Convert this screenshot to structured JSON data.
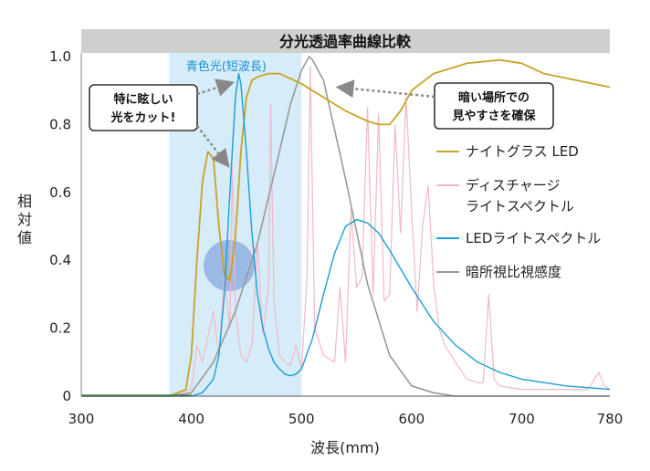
{
  "chart_data": {
    "type": "line",
    "title": "分光透過率曲線比較",
    "xlabel": "波長(mm)",
    "ylabel": "相対値",
    "xlim": [
      300,
      780
    ],
    "ylim": [
      0,
      1.0
    ],
    "x_ticks": [
      "300",
      "400",
      "500",
      "600",
      "700",
      "780"
    ],
    "x_tick_values": [
      300,
      400,
      500,
      600,
      700,
      780
    ],
    "y_ticks": [
      "0",
      "0.2",
      "0.4",
      "0.6",
      "0.8",
      "1.0"
    ],
    "y_tick_values": [
      0,
      0.2,
      0.4,
      0.6,
      0.8,
      1.0
    ],
    "grid": false,
    "legend_position": "right",
    "series": [
      {
        "name": "ナイトグラス LED",
        "color": "#c9a227",
        "x": [
          300,
          380,
          395,
          400,
          405,
          410,
          415,
          420,
          425,
          430,
          435,
          440,
          445,
          450,
          455,
          460,
          470,
          480,
          500,
          520,
          540,
          560,
          570,
          580,
          590,
          600,
          620,
          650,
          680,
          700,
          720,
          750,
          780
        ],
        "y": [
          0,
          0,
          0.02,
          0.12,
          0.4,
          0.63,
          0.72,
          0.7,
          0.5,
          0.36,
          0.34,
          0.47,
          0.72,
          0.88,
          0.93,
          0.94,
          0.95,
          0.95,
          0.92,
          0.88,
          0.84,
          0.81,
          0.8,
          0.8,
          0.84,
          0.9,
          0.95,
          0.98,
          0.99,
          0.98,
          0.95,
          0.93,
          0.91
        ]
      },
      {
        "name": "ディスチャージ ライトスペクトル",
        "color": "#f2b8c6",
        "x": [
          300,
          380,
          400,
          405,
          410,
          420,
          425,
          430,
          435,
          437,
          440,
          445,
          450,
          455,
          460,
          465,
          470,
          472,
          475,
          480,
          485,
          490,
          495,
          500,
          505,
          508,
          512,
          520,
          530,
          535,
          540,
          545,
          550,
          555,
          560,
          565,
          570,
          575,
          580,
          585,
          590,
          595,
          600,
          605,
          610,
          615,
          620,
          625,
          630,
          640,
          650,
          660,
          665,
          670,
          675,
          680,
          700,
          720,
          740,
          760,
          770,
          775,
          780
        ],
        "y": [
          0,
          0,
          0.02,
          0.15,
          0.1,
          0.25,
          0.12,
          0.35,
          0.2,
          0.68,
          0.25,
          0.12,
          0.1,
          0.15,
          0.45,
          0.18,
          0.32,
          0.86,
          0.28,
          0.12,
          0.1,
          0.09,
          0.15,
          0.08,
          0.35,
          0.97,
          0.2,
          0.12,
          0.1,
          0.32,
          0.1,
          0.55,
          0.32,
          0.35,
          0.85,
          0.3,
          0.83,
          0.28,
          0.3,
          0.8,
          0.48,
          0.88,
          0.55,
          0.25,
          0.5,
          0.62,
          0.33,
          0.2,
          0.15,
          0.1,
          0.05,
          0.04,
          0.04,
          0.3,
          0.05,
          0.03,
          0.02,
          0.02,
          0.02,
          0.02,
          0.07,
          0.03,
          0.02
        ]
      },
      {
        "name": "LEDライトスペクトル",
        "color": "#1a9fd6",
        "x": [
          300,
          400,
          410,
          420,
          425,
          430,
          435,
          440,
          443,
          445,
          450,
          455,
          460,
          465,
          470,
          475,
          480,
          485,
          490,
          495,
          500,
          510,
          520,
          530,
          540,
          550,
          560,
          570,
          580,
          600,
          620,
          640,
          660,
          680,
          700,
          720,
          740,
          760,
          780
        ],
        "y": [
          0,
          0,
          0.01,
          0.05,
          0.12,
          0.3,
          0.6,
          0.88,
          0.95,
          0.92,
          0.72,
          0.48,
          0.3,
          0.2,
          0.14,
          0.1,
          0.08,
          0.065,
          0.06,
          0.065,
          0.08,
          0.17,
          0.3,
          0.42,
          0.5,
          0.52,
          0.51,
          0.48,
          0.43,
          0.32,
          0.22,
          0.15,
          0.1,
          0.07,
          0.05,
          0.04,
          0.03,
          0.025,
          0.02
        ]
      },
      {
        "name": "暗所視比視感度",
        "color": "#999999",
        "x": [
          300,
          380,
          400,
          420,
          440,
          460,
          480,
          490,
          500,
          507,
          510,
          520,
          540,
          560,
          580,
          600,
          620,
          640,
          660,
          680,
          700,
          780
        ],
        "y": [
          0,
          0,
          0.01,
          0.1,
          0.25,
          0.45,
          0.72,
          0.86,
          0.96,
          1.0,
          0.99,
          0.93,
          0.64,
          0.33,
          0.12,
          0.03,
          0.01,
          0,
          0,
          0,
          0,
          0
        ]
      }
    ],
    "band": {
      "label": "青色光(短波長)",
      "from": 380,
      "to": 500,
      "color": "#d6ecf8"
    },
    "annotations": [
      {
        "label": "特に眩しい光をカット!",
        "line1": "特に眩しい",
        "line2": "光をカット!"
      },
      {
        "label": "暗い場所での見やすさを確保",
        "line1": "暗い場所での",
        "line2": "見やすさを確保"
      }
    ]
  }
}
